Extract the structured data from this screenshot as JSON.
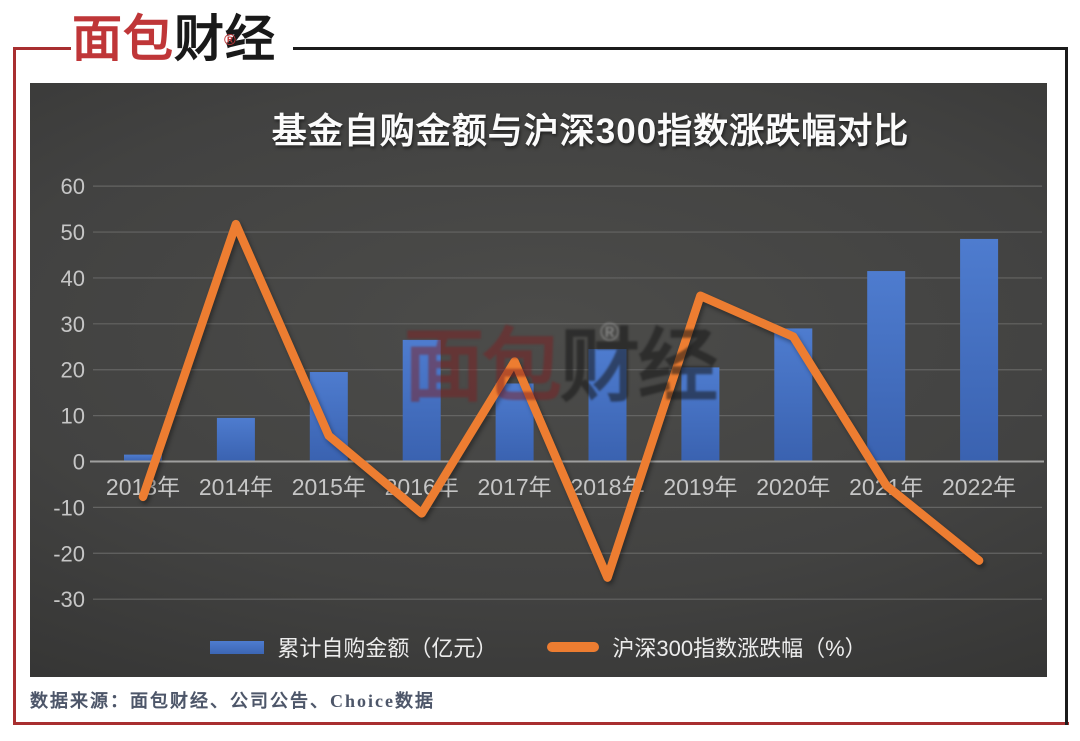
{
  "logo": {
    "brand_red": "面包",
    "brand_black": "财经",
    "reg_mark": "®"
  },
  "chart": {
    "title": "基金自购金额与沪深300指数涨跌幅对比",
    "watermark": {
      "red": "面包",
      "dark": "财经",
      "reg": "®"
    },
    "colors": {
      "bar": "#4472C4",
      "line": "#ED7D31",
      "background": "#3f3f3e",
      "tick_text": "#c6c6c6",
      "gridline": "#646463",
      "zero_axis": "#9f9f9e",
      "frame_red": "#a82f30",
      "frame_black": "#1b1b1b"
    }
  },
  "chart_data": {
    "type": "bar+line",
    "title": "基金自购金额与沪深300指数涨跌幅对比",
    "categories": [
      "2013年",
      "2014年",
      "2015年",
      "2016年",
      "2017年",
      "2018年",
      "2019年",
      "2020年",
      "2021年",
      "2022年"
    ],
    "series": [
      {
        "name": "累计自购金额（亿元）",
        "type": "bar",
        "color": "#4472C4",
        "values": [
          1.5,
          9.5,
          19.5,
          26.5,
          17,
          24.5,
          20.5,
          29,
          41.5,
          48.5
        ]
      },
      {
        "name": "沪深300指数涨跌幅（%）",
        "type": "line",
        "color": "#ED7D31",
        "values": [
          -7.7,
          51.7,
          5.6,
          -11.3,
          21.8,
          -25.3,
          36.1,
          27.2,
          -5.2,
          -21.6
        ]
      }
    ],
    "xlabel": "",
    "ylabel": "",
    "yticks": [
      60,
      50,
      40,
      30,
      20,
      10,
      0,
      -10,
      -20,
      -30
    ],
    "ylim": [
      -30,
      60
    ],
    "grid": true,
    "legend_position": "bottom"
  },
  "footer": {
    "source": "数据来源：面包财经、公司公告、Choice数据"
  }
}
